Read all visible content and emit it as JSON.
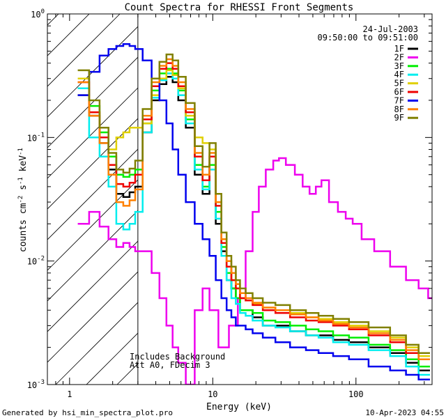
{
  "chart_data": {
    "type": "line",
    "title": "Count Spectra for RHESSI Front Segments",
    "xlabel": "Energy (keV)",
    "ylabel_parts": {
      "base": "counts cm",
      "exp1": "-2",
      "mid1": " s",
      "exp2": "-1",
      "mid2": " keV",
      "exp3": "-1"
    },
    "xscale": "log",
    "yscale": "log",
    "xlim": [
      0.7,
      340
    ],
    "ylim": [
      0.001,
      1
    ],
    "x_ticks": [
      {
        "v": 1,
        "label": "1"
      },
      {
        "v": 10,
        "label": "10"
      },
      {
        "v": 100,
        "label": "100"
      }
    ],
    "y_ticks": [
      {
        "v": 1,
        "base": "10",
        "exp": "0"
      },
      {
        "v": 0.1,
        "base": "10",
        "exp": "-1"
      },
      {
        "v": 0.01,
        "base": "10",
        "exp": "-2"
      },
      {
        "v": 0.001,
        "base": "10",
        "exp": "-3"
      }
    ],
    "date": "24-Jul-2003",
    "time_range": "09:50:00 to 09:51:00",
    "attenuator_boundary_kev": 3,
    "notes": [
      "Includes Background",
      "Att A0, FDecim 3"
    ],
    "series": [
      {
        "name": "1F",
        "color": "#000000",
        "x": [
          1.25,
          1.5,
          1.75,
          2,
          2.25,
          2.5,
          2.75,
          3,
          3.5,
          4,
          4.5,
          5,
          5.5,
          6,
          7,
          8,
          9,
          10,
          11,
          12,
          13,
          14,
          15,
          16,
          18,
          20,
          25,
          30,
          40,
          50,
          60,
          80,
          100,
          150,
          200,
          250,
          300
        ],
        "y": [
          0.22,
          0.15,
          0.09,
          0.055,
          0.035,
          0.033,
          0.036,
          0.04,
          0.11,
          0.2,
          0.27,
          0.31,
          0.28,
          0.2,
          0.12,
          0.05,
          0.035,
          0.06,
          0.02,
          0.012,
          0.007,
          0.006,
          0.005,
          0.004,
          0.004,
          0.0035,
          0.003,
          0.003,
          0.0027,
          0.0025,
          0.0025,
          0.0023,
          0.0022,
          0.002,
          0.0018,
          0.0015,
          0.0013
        ]
      },
      {
        "name": "2F",
        "color": "#ee00ee",
        "x": [
          1.25,
          1.5,
          1.75,
          2,
          2.25,
          2.5,
          2.75,
          3,
          3.5,
          4,
          4.5,
          5,
          5.5,
          6,
          7,
          8,
          9,
          10,
          12,
          14,
          16,
          18,
          20,
          22,
          25,
          28,
          30,
          35,
          40,
          45,
          50,
          55,
          60,
          70,
          80,
          90,
          100,
          120,
          150,
          200,
          250,
          300,
          340
        ],
        "y": [
          0.02,
          0.025,
          0.019,
          0.015,
          0.013,
          0.014,
          0.013,
          0.012,
          0.012,
          0.008,
          0.005,
          0.003,
          0.002,
          0.0015,
          0.001,
          0.004,
          0.006,
          0.004,
          0.002,
          0.003,
          0.005,
          0.012,
          0.025,
          0.04,
          0.055,
          0.065,
          0.068,
          0.06,
          0.05,
          0.04,
          0.035,
          0.04,
          0.045,
          0.03,
          0.025,
          0.022,
          0.02,
          0.015,
          0.012,
          0.009,
          0.007,
          0.006,
          0.005
        ]
      },
      {
        "name": "3F",
        "color": "#00ee00",
        "x": [
          1.25,
          1.5,
          1.75,
          2,
          2.25,
          2.5,
          2.75,
          3,
          3.5,
          4,
          4.5,
          5,
          5.5,
          6,
          7,
          8,
          9,
          10,
          11,
          12,
          13,
          14,
          15,
          16,
          18,
          20,
          25,
          30,
          40,
          50,
          60,
          80,
          100,
          150,
          200,
          250,
          300
        ],
        "y": [
          0.25,
          0.18,
          0.11,
          0.07,
          0.05,
          0.048,
          0.05,
          0.055,
          0.13,
          0.24,
          0.33,
          0.36,
          0.33,
          0.24,
          0.14,
          0.06,
          0.04,
          0.06,
          0.025,
          0.013,
          0.008,
          0.006,
          0.005,
          0.004,
          0.004,
          0.0038,
          0.0033,
          0.0032,
          0.003,
          0.0028,
          0.0027,
          0.0025,
          0.0024,
          0.0021,
          0.0019,
          0.0016,
          0.0014
        ]
      },
      {
        "name": "4F",
        "color": "#00eeee",
        "x": [
          1.25,
          1.5,
          1.75,
          2,
          2.25,
          2.5,
          2.75,
          3,
          3.5,
          4,
          4.5,
          5,
          5.5,
          6,
          7,
          8,
          9,
          10,
          11,
          12,
          13,
          14,
          15,
          16,
          18,
          20,
          25,
          30,
          40,
          50,
          60,
          80,
          100,
          150,
          200,
          250,
          300
        ],
        "y": [
          0.25,
          0.1,
          0.07,
          0.04,
          0.02,
          0.018,
          0.02,
          0.025,
          0.11,
          0.21,
          0.29,
          0.33,
          0.3,
          0.22,
          0.13,
          0.055,
          0.038,
          0.055,
          0.022,
          0.011,
          0.007,
          0.005,
          0.0045,
          0.0038,
          0.0036,
          0.0033,
          0.003,
          0.0029,
          0.0027,
          0.0025,
          0.0024,
          0.0022,
          0.0021,
          0.0019,
          0.0017,
          0.0014,
          0.0012
        ]
      },
      {
        "name": "5F",
        "color": "#e0d000",
        "x": [
          1.25,
          1.5,
          1.75,
          2,
          2.25,
          2.5,
          2.75,
          3,
          3.5,
          4,
          4.5,
          5,
          5.5,
          6,
          7,
          8,
          9,
          10,
          11,
          12,
          13,
          14,
          15,
          16,
          18,
          20,
          25,
          30,
          40,
          50,
          60,
          80,
          100,
          150,
          200,
          250,
          300
        ],
        "y": [
          0.3,
          0.16,
          0.1,
          0.08,
          0.1,
          0.11,
          0.12,
          0.12,
          0.13,
          0.22,
          0.3,
          0.35,
          0.32,
          0.25,
          0.15,
          0.1,
          0.09,
          0.08,
          0.03,
          0.015,
          0.009,
          0.007,
          0.006,
          0.005,
          0.0048,
          0.0045,
          0.0042,
          0.004,
          0.0038,
          0.0035,
          0.0034,
          0.0032,
          0.003,
          0.0027,
          0.0024,
          0.002,
          0.0017
        ]
      },
      {
        "name": "6F",
        "color": "#ee0000",
        "x": [
          1.25,
          1.5,
          1.75,
          2,
          2.25,
          2.5,
          2.75,
          3,
          3.5,
          4,
          4.5,
          5,
          5.5,
          6,
          7,
          8,
          9,
          10,
          11,
          12,
          13,
          14,
          15,
          16,
          18,
          20,
          25,
          30,
          40,
          50,
          60,
          80,
          100,
          150,
          200,
          250,
          300
        ],
        "y": [
          0.28,
          0.16,
          0.1,
          0.06,
          0.042,
          0.04,
          0.043,
          0.05,
          0.14,
          0.26,
          0.36,
          0.4,
          0.36,
          0.26,
          0.16,
          0.07,
          0.045,
          0.07,
          0.028,
          0.014,
          0.009,
          0.007,
          0.006,
          0.005,
          0.0048,
          0.0044,
          0.004,
          0.0038,
          0.0035,
          0.0033,
          0.0032,
          0.003,
          0.0028,
          0.0025,
          0.0022,
          0.0018,
          0.0016
        ]
      },
      {
        "name": "7F",
        "color": "#0000ee",
        "x": [
          1.25,
          1.5,
          1.75,
          2,
          2.25,
          2.5,
          2.75,
          3,
          3.5,
          4,
          4.5,
          5,
          5.5,
          6,
          7,
          8,
          9,
          10,
          11,
          12,
          13,
          14,
          15,
          16,
          18,
          20,
          25,
          30,
          40,
          50,
          60,
          80,
          100,
          150,
          200,
          250,
          300
        ],
        "y": [
          0.22,
          0.34,
          0.46,
          0.52,
          0.55,
          0.57,
          0.55,
          0.52,
          0.42,
          0.3,
          0.2,
          0.13,
          0.08,
          0.05,
          0.03,
          0.02,
          0.015,
          0.011,
          0.007,
          0.005,
          0.004,
          0.0035,
          0.003,
          0.003,
          0.0028,
          0.0026,
          0.0024,
          0.0022,
          0.002,
          0.0019,
          0.0018,
          0.0017,
          0.0016,
          0.0014,
          0.0013,
          0.0012,
          0.0011
        ]
      },
      {
        "name": "8F",
        "color": "#ff8000",
        "x": [
          1.25,
          1.5,
          1.75,
          2,
          2.25,
          2.5,
          2.75,
          3,
          3.5,
          4,
          4.5,
          5,
          5.5,
          6,
          7,
          8,
          9,
          10,
          11,
          12,
          13,
          14,
          15,
          16,
          18,
          20,
          25,
          30,
          40,
          50,
          60,
          80,
          100,
          150,
          200,
          250,
          300
        ],
        "y": [
          0.28,
          0.15,
          0.09,
          0.05,
          0.03,
          0.028,
          0.031,
          0.038,
          0.15,
          0.28,
          0.38,
          0.43,
          0.38,
          0.28,
          0.17,
          0.075,
          0.05,
          0.075,
          0.03,
          0.015,
          0.01,
          0.008,
          0.0065,
          0.0055,
          0.005,
          0.0046,
          0.0042,
          0.004,
          0.0037,
          0.0035,
          0.0033,
          0.0031,
          0.0029,
          0.0026,
          0.0023,
          0.0019,
          0.0016
        ]
      },
      {
        "name": "9F",
        "color": "#808000",
        "x": [
          1.25,
          1.5,
          1.75,
          2,
          2.25,
          2.5,
          2.75,
          3,
          3.5,
          4,
          4.5,
          5,
          5.5,
          6,
          7,
          8,
          9,
          10,
          11,
          12,
          13,
          14,
          15,
          16,
          18,
          20,
          25,
          30,
          40,
          50,
          60,
          80,
          100,
          150,
          200,
          250,
          300
        ],
        "y": [
          0.35,
          0.2,
          0.12,
          0.075,
          0.055,
          0.052,
          0.056,
          0.065,
          0.17,
          0.3,
          0.41,
          0.47,
          0.42,
          0.31,
          0.19,
          0.085,
          0.058,
          0.09,
          0.035,
          0.017,
          0.011,
          0.009,
          0.007,
          0.006,
          0.0055,
          0.005,
          0.0046,
          0.0044,
          0.004,
          0.0038,
          0.0036,
          0.0034,
          0.0032,
          0.0029,
          0.0025,
          0.0021,
          0.0018
        ]
      }
    ]
  },
  "footer": {
    "generated_by": "Generated by hsi_min_spectra_plot.pro",
    "generated_at": "10-Apr-2023 04:55"
  }
}
